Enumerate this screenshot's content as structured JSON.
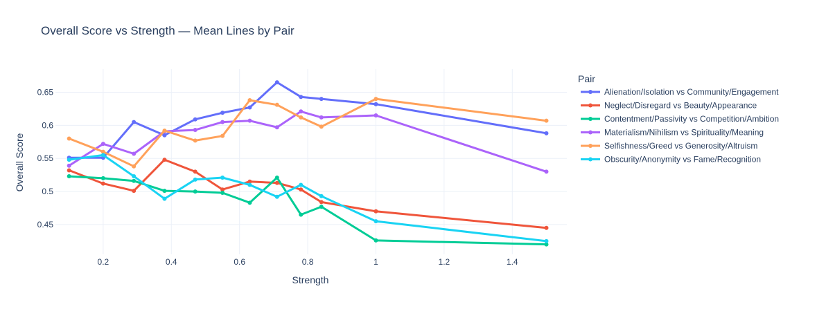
{
  "chart_data": {
    "type": "line",
    "title": "Overall Score vs Strength — Mean Lines by Pair",
    "xlabel": "Strength",
    "ylabel": "Overall Score",
    "legend_title": "Pair",
    "legend_position": "right",
    "grid": true,
    "xlim": [
      0.06,
      1.56
    ],
    "ylim": [
      0.405,
      0.685
    ],
    "x_ticks": [
      0.2,
      0.4,
      0.6,
      0.8,
      1,
      1.2,
      1.4
    ],
    "y_ticks": [
      0.45,
      0.5,
      0.55,
      0.6,
      0.65
    ],
    "x": [
      0.1,
      0.2,
      0.29,
      0.38,
      0.47,
      0.55,
      0.63,
      0.71,
      0.78,
      0.84,
      1.0,
      1.5
    ],
    "series": [
      {
        "name": "Alienation/Isolation vs Community/Engagement",
        "color": "#636efa",
        "values": [
          0.551,
          0.551,
          0.605,
          0.585,
          0.609,
          0.619,
          0.627,
          0.665,
          0.643,
          0.64,
          0.632,
          0.588
        ]
      },
      {
        "name": "Neglect/Disregard vs Beauty/Appearance",
        "color": "#ef553b",
        "values": [
          0.532,
          0.512,
          0.501,
          0.548,
          0.53,
          0.503,
          0.515,
          0.513,
          0.503,
          0.484,
          0.47,
          0.445
        ]
      },
      {
        "name": "Contentment/Passivity vs Competition/Ambition",
        "color": "#00cc96",
        "values": [
          0.523,
          0.52,
          0.516,
          0.501,
          0.5,
          0.498,
          0.483,
          0.521,
          0.465,
          0.477,
          0.426,
          0.42
        ]
      },
      {
        "name": "Materialism/Nihilism vs Spirituality/Meaning",
        "color": "#ab63fa",
        "values": [
          0.539,
          0.572,
          0.557,
          0.591,
          0.593,
          0.605,
          0.607,
          0.597,
          0.621,
          0.612,
          0.615,
          0.53
        ]
      },
      {
        "name": "Selfishness/Greed vs Generosity/Altruism",
        "color": "#ffa15a",
        "values": [
          0.58,
          0.56,
          0.538,
          0.592,
          0.577,
          0.584,
          0.638,
          0.631,
          0.612,
          0.598,
          0.64,
          0.607
        ]
      },
      {
        "name": "Obscurity/Anonymity vs Fame/Recognition",
        "color": "#19d3f3",
        "values": [
          0.548,
          0.555,
          0.523,
          0.489,
          0.518,
          0.521,
          0.51,
          0.492,
          0.51,
          0.493,
          0.455,
          0.425
        ]
      }
    ]
  }
}
